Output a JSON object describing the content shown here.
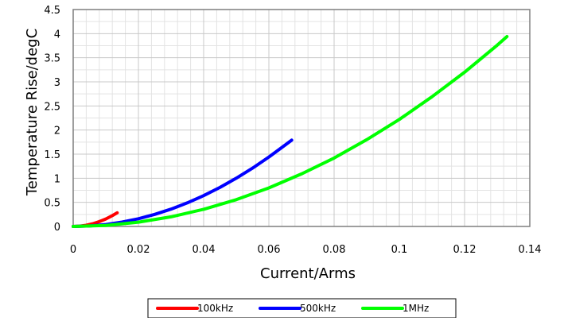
{
  "chart_data": {
    "type": "line",
    "title": "",
    "xlabel": "Current/Arms",
    "ylabel": "Temperature Rise/degC",
    "xlim": [
      0,
      0.14
    ],
    "ylim": [
      0,
      4.5
    ],
    "x_ticks": [
      "0",
      "0.02",
      "0.04",
      "0.06",
      "0.08",
      "0.1",
      "0.12",
      "0.14"
    ],
    "y_ticks": [
      "0",
      "0.5",
      "1",
      "1.5",
      "2",
      "2.5",
      "3",
      "3.5",
      "4",
      "4.5"
    ],
    "x_tick_values": [
      0,
      0.02,
      0.04,
      0.06,
      0.08,
      0.1,
      0.12,
      0.14
    ],
    "y_tick_values": [
      0,
      0.5,
      1,
      1.5,
      2,
      2.5,
      3,
      3.5,
      4,
      4.5
    ],
    "grid": true,
    "minor_grid": true,
    "legend_position": "bottom",
    "series": [
      {
        "name": "100kHz",
        "color": "#ff0000",
        "x": [
          0,
          0.002,
          0.004,
          0.006,
          0.008,
          0.01,
          0.012,
          0.0135
        ],
        "y": [
          0,
          0.006,
          0.025,
          0.056,
          0.1,
          0.155,
          0.224,
          0.284
        ]
      },
      {
        "name": "500kHz",
        "color": "#0000ff",
        "x": [
          0,
          0.005,
          0.01,
          0.015,
          0.02,
          0.025,
          0.03,
          0.035,
          0.04,
          0.045,
          0.05,
          0.055,
          0.06,
          0.065,
          0.067
        ],
        "y": [
          0,
          0.01,
          0.04,
          0.09,
          0.16,
          0.25,
          0.36,
          0.49,
          0.64,
          0.81,
          1.0,
          1.21,
          1.44,
          1.69,
          1.79
        ]
      },
      {
        "name": "1MHz",
        "color": "#00ff00",
        "x": [
          0,
          0.01,
          0.02,
          0.03,
          0.04,
          0.05,
          0.06,
          0.07,
          0.08,
          0.09,
          0.1,
          0.11,
          0.12,
          0.13,
          0.133
        ],
        "y": [
          0,
          0.022,
          0.089,
          0.2,
          0.356,
          0.556,
          0.8,
          1.09,
          1.42,
          1.8,
          2.22,
          2.69,
          3.2,
          3.76,
          3.94
        ]
      }
    ]
  }
}
